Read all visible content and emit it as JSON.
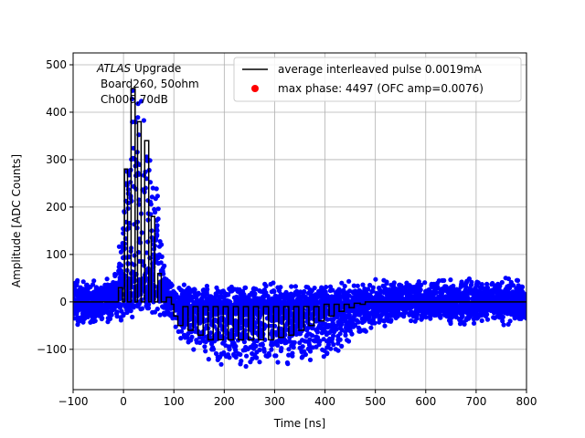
{
  "chart_data": {
    "type": "line",
    "title": "",
    "xlabel": "Time [ns]",
    "ylabel": "Amplitude [ADC Counts]",
    "xlim": [
      -100,
      800
    ],
    "ylim": [
      -185,
      525
    ],
    "grid": true,
    "x_ticks": [
      -100,
      0,
      100,
      200,
      300,
      400,
      500,
      600,
      700,
      800
    ],
    "y_ticks": [
      -100,
      0,
      100,
      200,
      300,
      400,
      500
    ],
    "annotation": {
      "line1_italic": "ATLAS",
      "line1_rest": " Upgrade",
      "line2": "Board260, 50ohm",
      "line3": "Ch006,70dB"
    },
    "legend": {
      "location": "top-right",
      "entries": [
        {
          "label": "average interleaved pulse 0.0019mA",
          "marker": "line",
          "color": "#000000"
        },
        {
          "label": "max phase: 4497 (OFC amp=0.0076)",
          "marker": "dot",
          "color": "#ff0000"
        }
      ]
    },
    "series": [
      {
        "name": "average interleaved pulse 0.0019mA",
        "style": "line",
        "color": "#000000",
        "x": [
          -100,
          -10,
          -10,
          -2,
          -2,
          2,
          2,
          8,
          8,
          15,
          15,
          23,
          23,
          28,
          28,
          35,
          35,
          42,
          42,
          50,
          50,
          55,
          55,
          62,
          62,
          68,
          68,
          75,
          75,
          85,
          85,
          95,
          95,
          100,
          100,
          108,
          108,
          118,
          118,
          128,
          128,
          138,
          138,
          148,
          148,
          158,
          158,
          168,
          168,
          178,
          178,
          188,
          188,
          198,
          198,
          208,
          208,
          218,
          218,
          228,
          228,
          238,
          238,
          248,
          248,
          258,
          258,
          268,
          268,
          278,
          278,
          288,
          288,
          298,
          298,
          308,
          308,
          318,
          318,
          328,
          328,
          338,
          338,
          348,
          348,
          358,
          358,
          368,
          368,
          378,
          378,
          388,
          388,
          398,
          398,
          408,
          408,
          418,
          418,
          428,
          428,
          438,
          438,
          448,
          448,
          458,
          458,
          470,
          470,
          480,
          480,
          500,
          800
        ],
        "y": [
          0,
          0,
          30,
          30,
          0,
          0,
          280,
          280,
          0,
          0,
          450,
          450,
          0,
          0,
          380,
          380,
          0,
          0,
          340,
          340,
          0,
          0,
          180,
          180,
          0,
          0,
          60,
          60,
          0,
          0,
          10,
          10,
          -5,
          -5,
          -30,
          -30,
          -50,
          -50,
          -10,
          -10,
          -60,
          -60,
          -10,
          -10,
          -70,
          -70,
          -10,
          -10,
          -80,
          -80,
          -10,
          -10,
          -80,
          -80,
          -10,
          -10,
          -80,
          -80,
          -10,
          -10,
          -80,
          -80,
          -10,
          -10,
          -80,
          -80,
          -10,
          -10,
          -80,
          -80,
          -10,
          -10,
          -80,
          -80,
          -10,
          -10,
          -75,
          -75,
          -10,
          -10,
          -70,
          -70,
          -10,
          -10,
          -60,
          -60,
          -10,
          -10,
          -50,
          -50,
          -10,
          -10,
          -40,
          -40,
          -5,
          -5,
          -30,
          -30,
          -5,
          -5,
          -20,
          -20,
          -5,
          -5,
          -12,
          -12,
          -3,
          -3,
          -5,
          -5,
          0,
          0,
          0
        ]
      },
      {
        "name": "max phase: 4497 (OFC amp=0.0076)",
        "style": "scatter",
        "color": "#ff0000",
        "x": [],
        "y": []
      }
    ],
    "scatter_samples": {
      "color": "#0000ff",
      "noise_band": 50,
      "x_range": [
        -100,
        800
      ],
      "envelope": [
        [
          -100,
          0
        ],
        [
          -20,
          0
        ],
        [
          -5,
          120
        ],
        [
          0,
          180
        ],
        [
          10,
          300
        ],
        [
          20,
          470
        ],
        [
          30,
          430
        ],
        [
          40,
          400
        ],
        [
          50,
          300
        ],
        [
          60,
          270
        ],
        [
          70,
          200
        ],
        [
          80,
          60
        ],
        [
          95,
          20
        ],
        [
          110,
          -40
        ],
        [
          150,
          -90
        ],
        [
          200,
          -110
        ],
        [
          250,
          -110
        ],
        [
          300,
          -105
        ],
        [
          350,
          -100
        ],
        [
          400,
          -90
        ],
        [
          450,
          -60
        ],
        [
          500,
          -20
        ],
        [
          550,
          0
        ],
        [
          800,
          0
        ]
      ]
    }
  }
}
